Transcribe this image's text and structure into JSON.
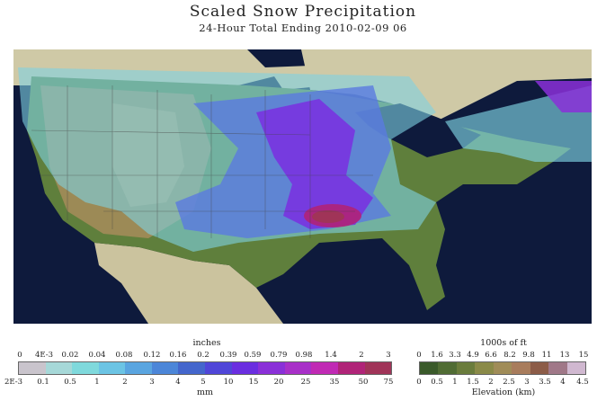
{
  "title": "Scaled Snow Precipitation",
  "subtitle": "24-Hour Total Ending 2010-02-09 06",
  "precip_legend": {
    "top_unit": "inches",
    "top_ticks": [
      "0",
      "4E-3",
      "0.02",
      "0.04",
      "0.08",
      "0.12",
      "0.16",
      "0.2",
      "0.39",
      "0.59",
      "0.79",
      "0.98",
      "1.4",
      "2",
      "3"
    ],
    "bottom_ticks": [
      "2E-3",
      "0.1",
      "0.5",
      "1",
      "2",
      "3",
      "4",
      "5",
      "10",
      "15",
      "20",
      "25",
      "35",
      "50",
      "75"
    ],
    "bottom_unit": "mm",
    "colors": [
      "#c9c4cc",
      "#a6d8d8",
      "#7fd9dc",
      "#6cc4e4",
      "#5aa5e0",
      "#4c86d8",
      "#4466cc",
      "#5046d8",
      "#6a2ee0",
      "#8a30d8",
      "#a830c8",
      "#c02ab4",
      "#b02478",
      "#a03458"
    ]
  },
  "elev_legend": {
    "top_unit": "1000s of ft",
    "top_ticks": [
      "0",
      "1.6",
      "3.3",
      "4.9",
      "6.6",
      "8.2",
      "9.8",
      "11",
      "13",
      "15"
    ],
    "bottom_ticks": [
      "0",
      "0.5",
      "1",
      "1.5",
      "2",
      "2.5",
      "3",
      "3.5",
      "4",
      "4.5"
    ],
    "bottom_unit": "Elevation (km)",
    "colors": [
      "#3a5a2a",
      "#506c34",
      "#6a7c3c",
      "#8a8a48",
      "#a08c58",
      "#a87c5c",
      "#8c5c48",
      "#a07888",
      "#d0b8d0"
    ]
  }
}
